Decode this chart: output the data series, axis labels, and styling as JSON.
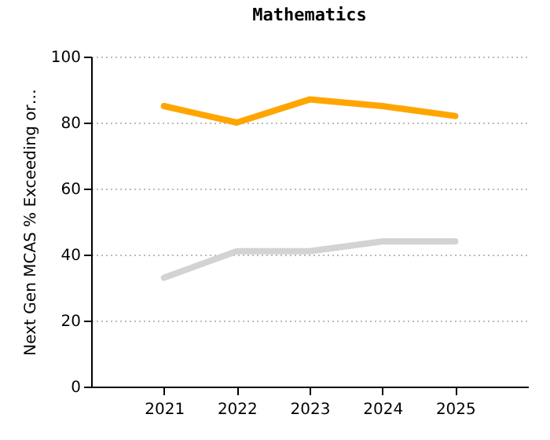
{
  "chart_data": {
    "type": "line",
    "title": "Mathematics",
    "ylabel": "Next Gen MCAS % Exceeding or…",
    "x": [
      2021,
      2022,
      2023,
      2024,
      2025
    ],
    "xlim": [
      2020,
      2026
    ],
    "xticks": [
      2021,
      2022,
      2023,
      2024,
      2025
    ],
    "ylim": [
      0,
      100
    ],
    "yticks": [
      0,
      20,
      40,
      60,
      80,
      100
    ],
    "grid": "y",
    "series": [
      {
        "color": "#ffa500",
        "values": [
          85,
          80,
          87,
          85,
          82
        ]
      },
      {
        "color": "#d3d3d3",
        "values": [
          33,
          41,
          41,
          44,
          44
        ]
      }
    ]
  }
}
